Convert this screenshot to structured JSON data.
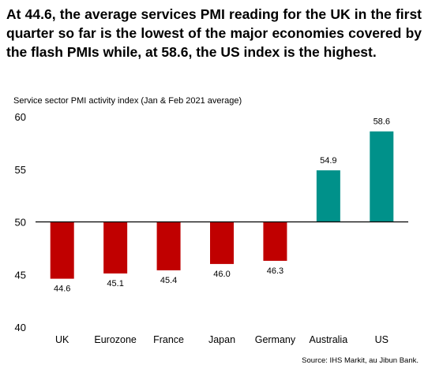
{
  "headline": "At 44.6, the average services PMI reading for the UK in the first quarter so far is the lowest of the major economies covered by the flash PMIs while, at 58.6, the US index is the highest.",
  "source": "Source: IHS Markit, au Jibun Bank.",
  "colors": {
    "below": "#c00000",
    "above": "#00918a"
  },
  "chart_data": {
    "type": "bar",
    "title": "Service sector PMI activity index (Jan & Feb 2021 average)",
    "categories": [
      "UK",
      "Eurozone",
      "France",
      "Japan",
      "Germany",
      "Australia",
      "US"
    ],
    "values": [
      44.6,
      45.1,
      45.4,
      46.0,
      46.3,
      54.9,
      58.6
    ],
    "value_labels": [
      "44.6",
      "45.1",
      "45.4",
      "46.0",
      "46.3",
      "54.9",
      "58.6"
    ],
    "baseline": 50,
    "ylim": [
      40,
      60
    ],
    "yticks": [
      "40",
      "45",
      "50",
      "55",
      "60"
    ],
    "grid": false,
    "legend": "none"
  }
}
